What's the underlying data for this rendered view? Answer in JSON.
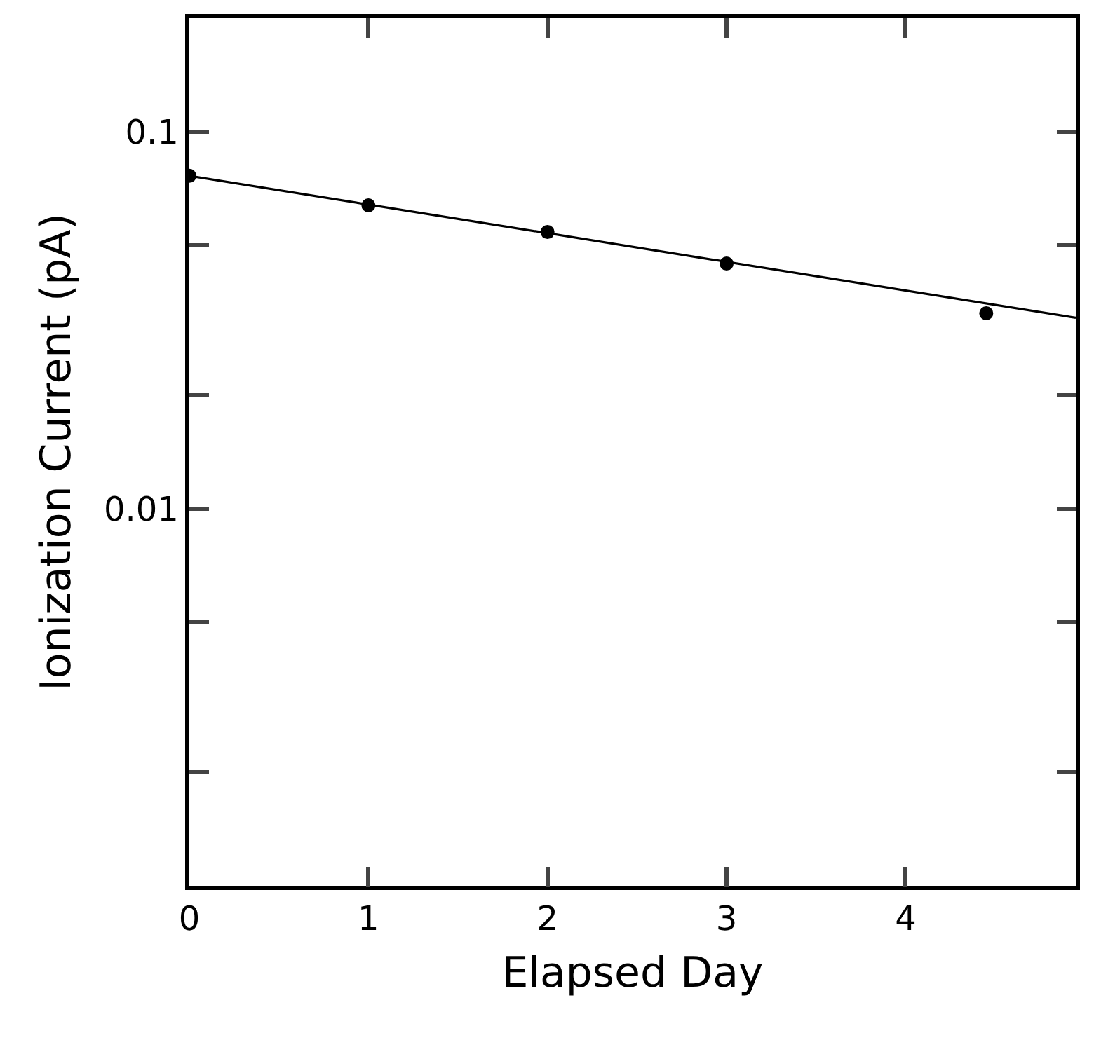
{
  "chart_data": {
    "type": "scatter",
    "xlabel": "Elapsed Day",
    "ylabel": "Ionization Current (pA)",
    "xlim": [
      0,
      4.95
    ],
    "xticks": [
      0,
      1,
      2,
      3,
      4
    ],
    "ylim": [
      0.001,
      0.2
    ],
    "log": "y",
    "yticks": [
      {
        "value": 0.002,
        "label": null
      },
      {
        "value": 0.005,
        "label": null
      },
      {
        "value": 0.01,
        "label": "0.01"
      },
      {
        "value": 0.02,
        "label": null
      },
      {
        "value": 0.05,
        "label": null
      },
      {
        "value": 0.1,
        "label": "0.1"
      }
    ],
    "marker": "circle",
    "series": [
      {
        "color": "#000000",
        "x": [
          0,
          1,
          2,
          3,
          4.45
        ],
        "values": [
          0.0764,
          0.0638,
          0.0542,
          0.0447,
          0.033
        ]
      },
      {
        "type": "line",
        "color": "#000000",
        "marker": "none",
        "line_style": "solid",
        "x": [
          0,
          4.95
        ],
        "values": [
          0.0764,
          0.0321
        ]
      }
    ]
  }
}
